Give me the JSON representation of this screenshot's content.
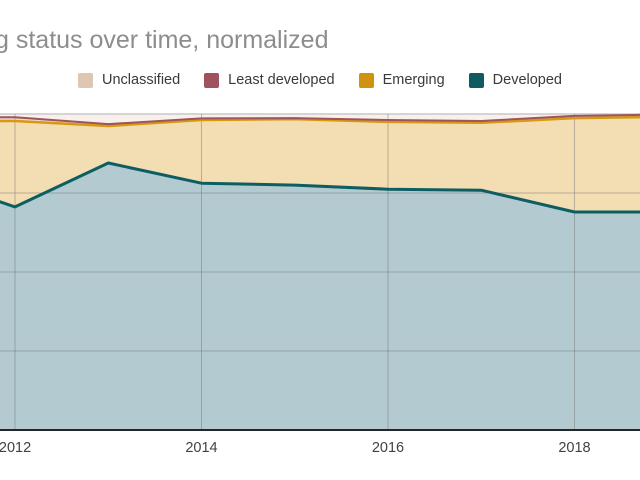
{
  "title": "g status over time, normalized",
  "legend": {
    "items": [
      {
        "label": "Unclassified",
        "color": "#ddc6b2"
      },
      {
        "label": "Least developed",
        "color": "#a0525e"
      },
      {
        "label": "Emerging",
        "color": "#d1930f"
      },
      {
        "label": "Developed",
        "color": "#0f5b61"
      }
    ]
  },
  "x_axis": {
    "tick_labels": [
      "2012",
      "2014",
      "2016",
      "2018"
    ]
  },
  "chart_data": {
    "type": "area",
    "stacked": true,
    "normalized": true,
    "title": "g status over time, normalized",
    "xlabel": "",
    "ylabel": "",
    "xlim": [
      2011.839,
      2018.703
    ],
    "ylim": [
      0,
      1
    ],
    "x_ticks": [
      2012,
      2014,
      2016,
      2018
    ],
    "y_gridlines": [
      0.25,
      0.5,
      0.75,
      1.0
    ],
    "grid": true,
    "legend_position": "top",
    "x": [
      2011.839,
      2012,
      2013,
      2014,
      2015,
      2016,
      2017,
      2018,
      2018.703
    ],
    "series": [
      {
        "name": "Developed",
        "stroke": "#0d5e63",
        "stroke_width": 3,
        "fill": "#b3cbd0",
        "values": [
          0.722,
          0.706,
          0.845,
          0.781,
          0.775,
          0.762,
          0.759,
          0.69,
          0.69
        ]
      },
      {
        "name": "Emerging",
        "stroke": "#d6990f",
        "stroke_width": 2.5,
        "fill": "#f3ddb3",
        "values": [
          0.256,
          0.272,
          0.117,
          0.2,
          0.209,
          0.213,
          0.213,
          0.297,
          0.3
        ]
      },
      {
        "name": "Least developed",
        "stroke": "#a0525e",
        "stroke_width": 2,
        "fill": "#eed7d3",
        "values": [
          0.012,
          0.012,
          0.006,
          0.005,
          0.003,
          0.006,
          0.006,
          0.007,
          0.007
        ]
      },
      {
        "name": "Unclassified",
        "stroke": "none",
        "stroke_width": 0,
        "fill": "#f8f1ea",
        "values": [
          0.01,
          0.01,
          0.032,
          0.014,
          0.013,
          0.019,
          0.022,
          0.006,
          0.003
        ]
      }
    ],
    "colors": {
      "axis_line": "#22262a",
      "tick_label": "#3e4347",
      "gridline": "rgba(110,110,110,0.45)",
      "top_border": "#c9c9c9"
    }
  }
}
